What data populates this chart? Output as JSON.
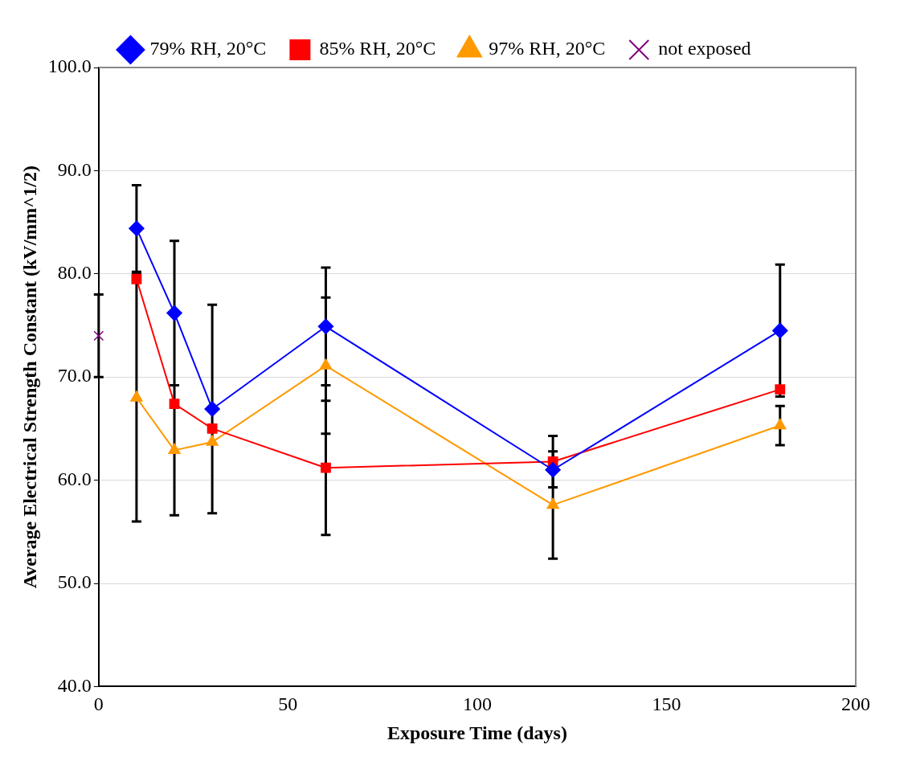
{
  "chart_data": {
    "type": "line",
    "xlabel": "Exposure Time (days)",
    "ylabel": "Average Electrical Strength Constant (kV/mm^1/2)",
    "xlim": [
      0,
      200
    ],
    "xticks": [
      0,
      50,
      100,
      150,
      200
    ],
    "ylim": [
      40,
      100
    ],
    "yticks": [
      {
        "value": 40,
        "label": "40.0"
      },
      {
        "value": 50,
        "label": "50.0"
      },
      {
        "value": 60,
        "label": "60.0"
      },
      {
        "value": 70,
        "label": "70.0"
      },
      {
        "value": 80,
        "label": "80.0"
      },
      {
        "value": 90,
        "label": "90.0"
      },
      {
        "value": 100,
        "label": "100.0"
      }
    ],
    "grid": "y",
    "legend": "top",
    "series": [
      {
        "name": "79% RH, 20°C",
        "color": "#0000ff",
        "marker": "diamond",
        "x": [
          10,
          20,
          30,
          60,
          120,
          180
        ],
        "values": [
          84.4,
          76.2,
          66.9,
          74.9,
          61.0,
          74.5
        ],
        "errors": [
          4.2,
          7.0,
          10.1,
          5.7,
          null,
          6.4
        ]
      },
      {
        "name": "85% RH, 20°C",
        "color": "#ff0000",
        "marker": "square",
        "x": [
          10,
          20,
          30,
          60,
          120,
          180
        ],
        "values": [
          79.5,
          67.4,
          65.0,
          61.2,
          61.8,
          68.8
        ],
        "errors": [
          null,
          null,
          null,
          6.5,
          2.5,
          null
        ]
      },
      {
        "name": "97% RH, 20°C",
        "color": "#ff9900",
        "marker": "triangle",
        "x": [
          10,
          20,
          30,
          60,
          120,
          180
        ],
        "values": [
          68.0,
          62.9,
          63.7,
          71.1,
          57.6,
          65.3
        ],
        "errors": [
          12.0,
          6.3,
          null,
          6.6,
          5.2,
          1.9
        ]
      },
      {
        "name": "not exposed",
        "color": "#800080",
        "marker": "cross",
        "x": [
          0
        ],
        "values": [
          74.0
        ],
        "errors": [
          4.0
        ]
      }
    ]
  }
}
